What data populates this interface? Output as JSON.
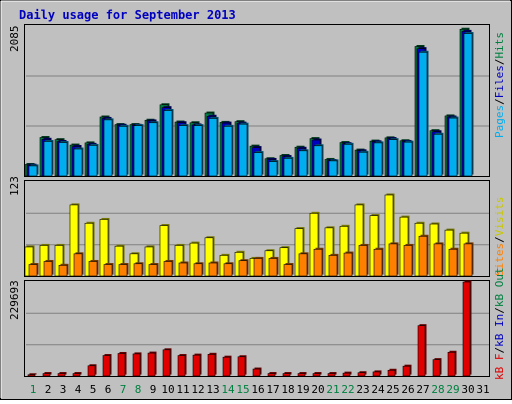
{
  "title": "Daily usage for September 2013",
  "panels": {
    "top": {
      "max_label": "2085",
      "legend": [
        {
          "text": "Pages",
          "color": "#00AEEF"
        },
        {
          "text": "/",
          "color": "#000000"
        },
        {
          "text": "Files",
          "color": "#0000C0"
        },
        {
          "text": "/",
          "color": "#000000"
        },
        {
          "text": "Hits",
          "color": "#008040"
        }
      ]
    },
    "middle": {
      "max_label": "123",
      "legend": [
        {
          "text": "Sites",
          "color": "#FF8000"
        },
        {
          "text": "/",
          "color": "#000000"
        },
        {
          "text": "Visits",
          "color": "#E0E000"
        }
      ]
    },
    "bottom": {
      "max_label": "229693",
      "legend": [
        {
          "text": "kB F",
          "color": "#E00000"
        },
        {
          "text": "/",
          "color": "#000000"
        },
        {
          "text": "kB In",
          "color": "#0000C0"
        },
        {
          "text": "/",
          "color": "#000000"
        },
        {
          "text": "kB Out",
          "color": "#008040"
        }
      ]
    }
  },
  "colors": {
    "background": "#C0C0C0",
    "title": "#0000C0",
    "hits": "#008040",
    "files": "#0000C0",
    "pages": "#00AEEF",
    "visits": "#FFFF00",
    "sites": "#FF8000",
    "kbytes": "#E00000",
    "weekday": "#008040",
    "weekend": "#0000C0"
  },
  "chart_data": [
    {
      "type": "bar",
      "title": "Daily usage for September 2013",
      "categories": [
        "1",
        "2",
        "3",
        "4",
        "5",
        "6",
        "7",
        "8",
        "9",
        "10",
        "11",
        "12",
        "13",
        "14",
        "15",
        "16",
        "17",
        "18",
        "19",
        "20",
        "21",
        "22",
        "23",
        "24",
        "25",
        "26",
        "27",
        "28",
        "29",
        "30",
        "31"
      ],
      "ylim": [
        0,
        2085
      ],
      "series": [
        {
          "name": "Hits",
          "values": [
            160,
            535,
            505,
            430,
            460,
            820,
            715,
            715,
            775,
            990,
            750,
            740,
            875,
            745,
            755,
            415,
            240,
            285,
            400,
            520,
            230,
            465,
            360,
            485,
            530,
            490,
            1800,
            630,
            835,
            2040,
            0
          ]
        },
        {
          "name": "Files",
          "values": [
            150,
            510,
            480,
            410,
            440,
            800,
            705,
            705,
            765,
            950,
            740,
            710,
            830,
            735,
            735,
            395,
            230,
            270,
            385,
            500,
            215,
            450,
            350,
            475,
            520,
            480,
            1770,
            615,
            820,
            2010,
            0
          ]
        },
        {
          "name": "Pages",
          "values": [
            140,
            480,
            465,
            375,
            425,
            780,
            690,
            700,
            740,
            910,
            700,
            700,
            800,
            690,
            720,
            325,
            200,
            245,
            350,
            420,
            210,
            440,
            330,
            460,
            505,
            470,
            1720,
            580,
            805,
            1980,
            0
          ]
        }
      ]
    },
    {
      "type": "bar",
      "categories": [
        "1",
        "2",
        "3",
        "4",
        "5",
        "6",
        "7",
        "8",
        "9",
        "10",
        "11",
        "12",
        "13",
        "14",
        "15",
        "16",
        "17",
        "18",
        "19",
        "20",
        "21",
        "22",
        "23",
        "24",
        "25",
        "26",
        "27",
        "28",
        "29",
        "30",
        "31"
      ],
      "ylim": [
        0,
        123
      ],
      "series": [
        {
          "name": "Visits",
          "values": [
            38,
            40,
            40,
            93,
            69,
            74,
            39,
            29,
            38,
            66,
            40,
            43,
            50,
            27,
            31,
            23,
            33,
            37,
            62,
            82,
            63,
            65,
            93,
            79,
            106,
            77,
            69,
            68,
            60,
            56,
            0
          ]
        },
        {
          "name": "Sites",
          "values": [
            15,
            19,
            14,
            29,
            19,
            15,
            15,
            16,
            15,
            19,
            17,
            16,
            17,
            16,
            20,
            23,
            23,
            15,
            29,
            35,
            27,
            30,
            40,
            35,
            42,
            40,
            52,
            42,
            35,
            42,
            0
          ]
        }
      ]
    },
    {
      "type": "bar",
      "categories": [
        "1",
        "2",
        "3",
        "4",
        "5",
        "6",
        "7",
        "8",
        "9",
        "10",
        "11",
        "12",
        "13",
        "14",
        "15",
        "16",
        "17",
        "18",
        "19",
        "20",
        "21",
        "22",
        "23",
        "24",
        "25",
        "26",
        "27",
        "28",
        "29",
        "30",
        "31"
      ],
      "ylim": [
        0,
        229693
      ],
      "series": [
        {
          "name": "kB F",
          "values": [
            3000,
            6000,
            6000,
            6000,
            25000,
            50000,
            55000,
            54000,
            56000,
            64000,
            50000,
            51000,
            53000,
            46000,
            47000,
            17000,
            6000,
            6000,
            6000,
            6000,
            6000,
            7000,
            8000,
            10000,
            14000,
            24000,
            123000,
            40000,
            58000,
            229693,
            0
          ]
        }
      ]
    }
  ]
}
